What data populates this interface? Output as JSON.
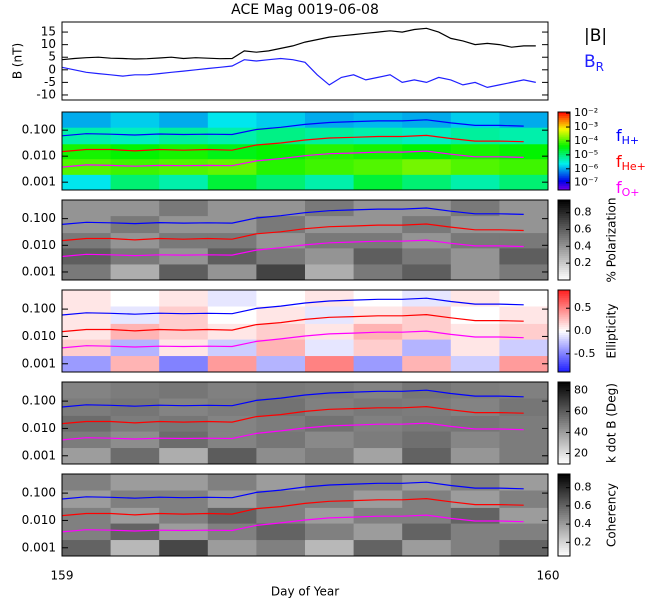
{
  "chart_data": [
    {
      "type": "line",
      "title": "ACE Mag 0019-06-08",
      "ylabel": "B (nT)",
      "xlim": [
        159,
        160
      ],
      "ylim": [
        -12,
        19
      ],
      "yticks": [
        -10,
        -5,
        0,
        5,
        10,
        15
      ],
      "x": [
        159,
        159.025,
        159.05,
        159.075,
        159.1,
        159.125,
        159.15,
        159.175,
        159.2,
        159.225,
        159.25,
        159.275,
        159.3,
        159.325,
        159.35,
        159.375,
        159.4,
        159.425,
        159.45,
        159.475,
        159.5,
        159.525,
        159.55,
        159.575,
        159.6,
        159.625,
        159.65,
        159.675,
        159.7,
        159.725,
        159.75,
        159.775,
        159.8,
        159.825,
        159.85,
        159.875,
        159.9,
        159.925,
        159.95,
        159.975
      ],
      "series": [
        {
          "name": "|B|",
          "color": "#000000",
          "values": [
            4,
            4.5,
            4.8,
            5,
            4.6,
            4.5,
            4.3,
            4.4,
            4.7,
            5,
            4.5,
            4.8,
            4.6,
            4.4,
            4.5,
            7.5,
            7,
            7.5,
            8.5,
            9.5,
            11,
            12,
            13,
            13.5,
            14,
            14.5,
            15,
            15.5,
            15,
            16,
            16.5,
            15,
            12.5,
            11.5,
            10,
            10.5,
            10,
            9,
            9.5,
            9.5
          ]
        },
        {
          "name": "B",
          "subscript": "R",
          "color": "#2020ff",
          "values": [
            1,
            0,
            -1,
            -1.5,
            -2,
            -2.5,
            -2,
            -2,
            -1.5,
            -1,
            -0.5,
            0,
            0.5,
            1,
            1.5,
            4,
            3.5,
            4,
            4.5,
            4,
            3,
            -2,
            -6,
            -3,
            -2,
            -4,
            -3,
            -2,
            -5,
            -4,
            -5,
            -3,
            -4,
            -6,
            -5,
            -7,
            -6,
            -5,
            -4,
            -5
          ]
        }
      ]
    },
    {
      "type": "heatmap",
      "xlim": [
        159,
        160
      ],
      "ylim": [
        0.0005,
        0.5
      ],
      "log_y": true,
      "yticks": [
        0.001,
        {
          "value": 0.01,
          "label": "0.010"
        },
        {
          "value": 0.1,
          "label": "0.100"
        }
      ],
      "x_edges": [
        159,
        159.1,
        159.2,
        159.3,
        159.4,
        159.5,
        159.6,
        159.7,
        159.8,
        159.9,
        160
      ],
      "y_edges": [
        0.0005,
        0.002,
        0.008,
        0.03,
        0.13,
        0.5
      ],
      "z": [
        [
          2e-06,
          1e-05,
          5e-06,
          2e-05,
          1e-05,
          5e-06,
          2e-05,
          1e-05,
          5e-06,
          1e-05
        ],
        [
          0.0001,
          8e-05,
          0.0001,
          0.00012,
          6e-05,
          8e-05,
          0.0001,
          0.00015,
          0.0001,
          8e-05
        ],
        [
          5e-05,
          4e-05,
          5e-05,
          3e-05,
          4e-05,
          6e-05,
          5e-05,
          4e-05,
          5e-05,
          4e-05
        ],
        [
          5e-06,
          4e-06,
          6e-06,
          5e-06,
          8e-06,
          6e-06,
          5e-06,
          4e-06,
          6e-06,
          5e-06
        ],
        [
          1e-06,
          1.5e-06,
          1e-06,
          2e-06,
          1.5e-06,
          1e-06,
          1.2e-06,
          1e-06,
          1.5e-06,
          1e-06
        ]
      ],
      "colorbar": {
        "colormap": "rainbow",
        "log": true,
        "lim": [
          3e-08,
          0.012
        ],
        "ticks": [
          {
            "value": 0.01,
            "label": "10⁻²"
          },
          {
            "value": 0.001,
            "label": "10⁻³"
          },
          {
            "value": 0.0001,
            "label": "10⁻⁴"
          },
          {
            "value": 1e-05,
            "label": "10⁻⁵"
          },
          {
            "value": 1e-06,
            "label": "10⁻⁶"
          },
          {
            "value": 1e-07,
            "label": "10⁻⁷"
          }
        ]
      },
      "x": [
        159,
        159.05,
        159.1,
        159.15,
        159.2,
        159.25,
        159.3,
        159.35,
        159.4,
        159.45,
        159.5,
        159.55,
        159.6,
        159.65,
        159.7,
        159.75,
        159.8,
        159.85,
        159.9,
        159.95
      ],
      "series": [
        {
          "name": "f",
          "subscript": "H+",
          "color": "#0000ff",
          "values": [
            0.061,
            0.073,
            0.07,
            0.065,
            0.071,
            0.068,
            0.07,
            0.068,
            0.106,
            0.129,
            0.167,
            0.198,
            0.213,
            0.228,
            0.228,
            0.251,
            0.19,
            0.152,
            0.152,
            0.144
          ]
        },
        {
          "name": "f",
          "subscript": "He+",
          "color": "#ff0000",
          "values": [
            0.015,
            0.018,
            0.018,
            0.016,
            0.018,
            0.017,
            0.018,
            0.017,
            0.027,
            0.032,
            0.042,
            0.05,
            0.053,
            0.057,
            0.057,
            0.063,
            0.048,
            0.038,
            0.038,
            0.036
          ]
        },
        {
          "name": "f",
          "subscript": "O+",
          "color": "#ff00ff",
          "values": [
            0.0038,
            0.0046,
            0.0044,
            0.0041,
            0.0044,
            0.0043,
            0.0044,
            0.0043,
            0.0066,
            0.0081,
            0.0104,
            0.0124,
            0.0133,
            0.0143,
            0.0143,
            0.0157,
            0.0119,
            0.0095,
            0.0095,
            0.009
          ]
        }
      ]
    },
    {
      "type": "heatmap",
      "xlim": [
        159,
        160
      ],
      "ylim": [
        0.0005,
        0.5
      ],
      "log_y": true,
      "yticks": [
        0.001,
        {
          "value": 0.01,
          "label": "0.010"
        },
        {
          "value": 0.1,
          "label": "0.100"
        }
      ],
      "x_edges": [
        159,
        159.1,
        159.2,
        159.3,
        159.4,
        159.5,
        159.6,
        159.7,
        159.8,
        159.9,
        160
      ],
      "y_edges": [
        0.0005,
        0.002,
        0.008,
        0.03,
        0.13,
        0.5
      ],
      "z": [
        [
          0.5,
          0.3,
          0.6,
          0.4,
          0.7,
          0.3,
          0.5,
          0.6,
          0.4,
          0.5
        ],
        [
          0.6,
          0.5,
          0.4,
          0.6,
          0.5,
          0.4,
          0.6,
          0.5,
          0.4,
          0.6
        ],
        [
          0.5,
          0.4,
          0.5,
          0.5,
          0.4,
          0.5,
          0.5,
          0.4,
          0.5,
          0.5
        ],
        [
          0.4,
          0.5,
          0.4,
          0.4,
          0.5,
          0.4,
          0.4,
          0.5,
          0.4,
          0.4
        ],
        [
          0.4,
          0.4,
          0.5,
          0.4,
          0.4,
          0.5,
          0.4,
          0.4,
          0.5,
          0.4
        ]
      ],
      "colorbar": {
        "label": "% Polarization",
        "colormap": "gray",
        "log": false,
        "lim": [
          0,
          0.95
        ],
        "ticks": [
          0.2,
          0.4,
          0.6,
          0.8
        ]
      }
    },
    {
      "type": "heatmap",
      "xlim": [
        159,
        160
      ],
      "ylim": [
        0.0005,
        0.5
      ],
      "log_y": true,
      "yticks": [
        0.001,
        {
          "value": 0.01,
          "label": "0.010"
        },
        {
          "value": 0.1,
          "label": "0.100"
        }
      ],
      "x_edges": [
        159,
        159.1,
        159.2,
        159.3,
        159.4,
        159.5,
        159.6,
        159.7,
        159.8,
        159.9,
        160
      ],
      "y_edges": [
        0.0005,
        0.002,
        0.008,
        0.03,
        0.13,
        0.5
      ],
      "z": [
        [
          -0.4,
          0.3,
          -0.5,
          0.4,
          -0.3,
          0.5,
          -0.4,
          0.3,
          -0.2,
          0.4
        ],
        [
          0.2,
          -0.3,
          0.1,
          -0.2,
          0.3,
          -0.1,
          0.2,
          -0.3,
          0.1,
          -0.2
        ],
        [
          0.1,
          0.3,
          0.2,
          0.1,
          0.2,
          0.1,
          0.3,
          0.2,
          0.1,
          0.2
        ],
        [
          0.1,
          -0.1,
          0.2,
          0,
          0.1,
          -0.1,
          0.1,
          0.2,
          0,
          0.1
        ],
        [
          0.1,
          0,
          0.1,
          -0.1,
          0,
          0.1,
          0,
          -0.1,
          0.1,
          0
        ]
      ],
      "colorbar": {
        "label": "Ellipticity",
        "colormap": "bwr",
        "log": false,
        "lim": [
          -0.9,
          0.9
        ],
        "ticks": [
          -0.5,
          {
            "value": 0,
            "label": "0.0"
          },
          0.5
        ]
      }
    },
    {
      "type": "heatmap",
      "xlim": [
        159,
        160
      ],
      "ylim": [
        0.0005,
        0.5
      ],
      "log_y": true,
      "yticks": [
        0.001,
        {
          "value": 0.01,
          "label": "0.010"
        },
        {
          "value": 0.1,
          "label": "0.100"
        }
      ],
      "x_edges": [
        159,
        159.1,
        159.2,
        159.3,
        159.4,
        159.5,
        159.6,
        159.7,
        159.8,
        159.9,
        160
      ],
      "y_edges": [
        0.0005,
        0.002,
        0.008,
        0.03,
        0.13,
        0.5
      ],
      "z": [
        [
          40,
          55,
          35,
          60,
          45,
          50,
          38,
          58,
          42,
          50
        ],
        [
          50,
          45,
          55,
          48,
          52,
          46,
          50,
          54,
          47,
          50
        ],
        [
          55,
          50,
          52,
          48,
          50,
          53,
          49,
          51,
          52,
          50
        ],
        [
          50,
          52,
          48,
          50,
          53,
          49,
          51,
          50,
          48,
          52
        ],
        [
          48,
          50,
          52,
          49,
          51,
          50,
          48,
          52,
          50,
          49
        ]
      ],
      "colorbar": {
        "label": "k dot B (Deg)",
        "colormap": "gray",
        "log": false,
        "lim": [
          10,
          88
        ],
        "ticks": [
          20,
          40,
          60,
          80
        ]
      }
    },
    {
      "type": "heatmap",
      "xlim": [
        159,
        160
      ],
      "ylim": [
        0.0005,
        0.5
      ],
      "log_y": true,
      "yticks": [
        0.001,
        {
          "value": 0.01,
          "label": "0.010"
        },
        {
          "value": 0.1,
          "label": "0.100"
        }
      ],
      "xticks": [
        159,
        160
      ],
      "xlabel": "Day of Year",
      "x_edges": [
        159,
        159.1,
        159.2,
        159.3,
        159.4,
        159.5,
        159.6,
        159.7,
        159.8,
        159.9,
        160
      ],
      "y_edges": [
        0.0005,
        0.002,
        0.008,
        0.03,
        0.13,
        0.5
      ],
      "z": [
        [
          0.6,
          0.3,
          0.7,
          0.4,
          0.5,
          0.3,
          0.6,
          0.4,
          0.5,
          0.6
        ],
        [
          0.5,
          0.6,
          0.4,
          0.5,
          0.6,
          0.5,
          0.4,
          0.6,
          0.5,
          0.5
        ],
        [
          0.5,
          0.4,
          0.5,
          0.6,
          0.5,
          0.4,
          0.5,
          0.5,
          0.6,
          0.4
        ],
        [
          0.4,
          0.5,
          0.5,
          0.4,
          0.5,
          0.5,
          0.4,
          0.5,
          0.4,
          0.5
        ],
        [
          0.5,
          0.4,
          0.4,
          0.5,
          0.4,
          0.5,
          0.5,
          0.4,
          0.5,
          0.4
        ]
      ],
      "colorbar": {
        "label": "Coherency",
        "colormap": "gray",
        "log": false,
        "lim": [
          0.05,
          0.95
        ],
        "ticks": [
          0.2,
          0.4,
          0.6,
          0.8
        ]
      }
    }
  ]
}
